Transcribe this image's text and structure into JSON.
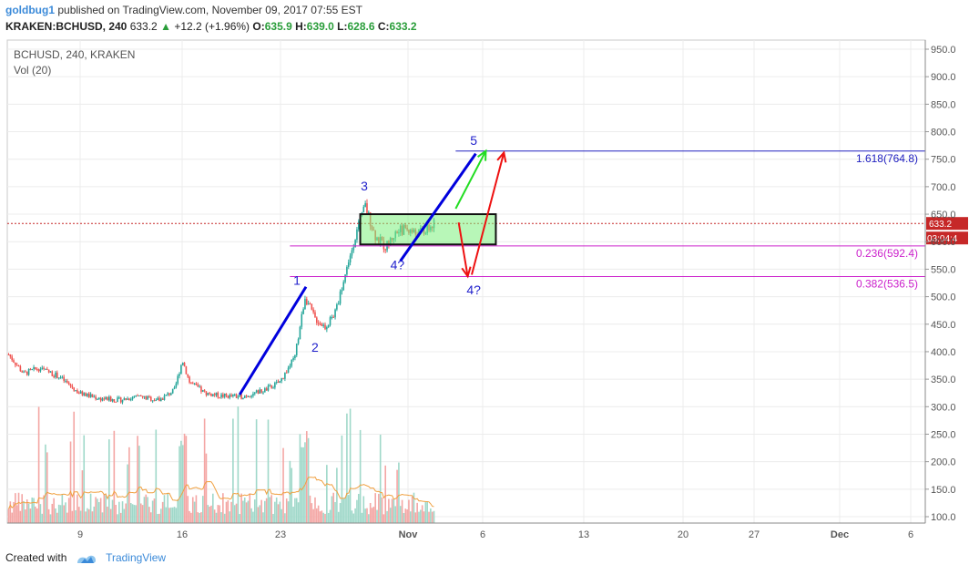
{
  "header": {
    "user": "goldbug1",
    "published": "published on TradingView.com, November 09, 2017 07:55 EST",
    "symbol_line": "KRAKEN:BCHUSD, 240",
    "last": "633.2",
    "change": "+12.2 (+1.96%)",
    "o_label": "O:",
    "o": "635.9",
    "h_label": "H:",
    "h": "639.0",
    "l_label": "L:",
    "l": "628.6",
    "c_label": "C:",
    "c": "633.2"
  },
  "legend": {
    "series": "BCHUSD, 240, KRAKEN",
    "volume": "Vol (20)"
  },
  "footer": {
    "created": "Created with",
    "brand": "TradingView"
  },
  "colors": {
    "up": "#26a69a",
    "down": "#ef5350",
    "accent": "#3b8ad9",
    "wave_line": "#0000dd",
    "fib_top": "#2020c0",
    "fib_magenta": "#cc22cc",
    "box_fill": "#7ef07e",
    "arrow_green": "#22dd22",
    "arrow_red": "#ee1111",
    "ma": "#f0a040",
    "price_marker": "#c62828"
  },
  "chart_data": {
    "type": "candlestick",
    "title": "BCHUSD, 240, KRAKEN",
    "ylim": [
      90,
      970
    ],
    "y_ticks": [
      "100.0",
      "150.0",
      "200.0",
      "250.0",
      "300.0",
      "350.0",
      "400.0",
      "450.0",
      "500.0",
      "550.0",
      "600.0",
      "650.0",
      "700.0",
      "750.0",
      "800.0",
      "850.0",
      "900.0",
      "950.0"
    ],
    "x_ticks": [
      "9",
      "16",
      "23",
      "Nov",
      "6",
      "13",
      "20",
      "27",
      "Dec",
      "6"
    ],
    "current_price": "633.2",
    "countdown": "03:04:4",
    "price_path": [
      {
        "d": 0,
        "p": 395
      },
      {
        "d": 1.5,
        "p": 360
      },
      {
        "d": 3,
        "p": 370
      },
      {
        "d": 5,
        "p": 355
      },
      {
        "d": 7,
        "p": 325
      },
      {
        "d": 9,
        "p": 315
      },
      {
        "d": 11,
        "p": 312
      },
      {
        "d": 13,
        "p": 318
      },
      {
        "d": 15,
        "p": 312
      },
      {
        "d": 16.5,
        "p": 330
      },
      {
        "d": 17.3,
        "p": 385
      },
      {
        "d": 18,
        "p": 345
      },
      {
        "d": 19.5,
        "p": 325
      },
      {
        "d": 21,
        "p": 320
      },
      {
        "d": 23,
        "p": 318
      },
      {
        "d": 24,
        "p": 322
      },
      {
        "d": 25.5,
        "p": 330
      },
      {
        "d": 27,
        "p": 345
      },
      {
        "d": 28.5,
        "p": 390
      },
      {
        "d": 29.5,
        "p": 500
      },
      {
        "d": 30.5,
        "p": 460
      },
      {
        "d": 31.5,
        "p": 445
      },
      {
        "d": 32.5,
        "p": 470
      },
      {
        "d": 33.5,
        "p": 540
      },
      {
        "d": 34.5,
        "p": 610
      },
      {
        "d": 35.5,
        "p": 665
      },
      {
        "d": 36.5,
        "p": 610
      },
      {
        "d": 37.5,
        "p": 590
      },
      {
        "d": 38.5,
        "p": 615
      },
      {
        "d": 39.5,
        "p": 625
      },
      {
        "d": 40.5,
        "p": 615
      },
      {
        "d": 41.5,
        "p": 620
      },
      {
        "d": 42.5,
        "p": 633.2
      }
    ],
    "volume_range": [
      0,
      10000
    ],
    "annotations": {
      "fib_levels": [
        {
          "label": "1.618(764.8)",
          "value": 764.8
        },
        {
          "label": "0.236(592.4)",
          "value": 592.4
        },
        {
          "label": "0.382(536.5)",
          "value": 536.5
        }
      ],
      "wave_labels": [
        {
          "text": "1",
          "d": 28.7,
          "p": 522
        },
        {
          "text": "2",
          "d": 30.5,
          "p": 400
        },
        {
          "text": "3",
          "d": 35.4,
          "p": 693
        },
        {
          "text": "4?",
          "d": 38.7,
          "p": 550
        },
        {
          "text": "4?",
          "d": 46.3,
          "p": 504
        },
        {
          "text": "5",
          "d": 46.3,
          "p": 776
        }
      ],
      "wave_lines": [
        {
          "from": {
            "d": 23,
            "p": 322
          },
          "to": {
            "d": 29.6,
            "p": 518
          }
        },
        {
          "from": {
            "d": 39,
            "p": 565
          },
          "to": {
            "d": 46.5,
            "p": 760
          }
        }
      ],
      "box": {
        "d1": 35,
        "d2": 48.5,
        "p1": 595,
        "p2": 650
      },
      "arrows": [
        {
          "color": "green",
          "from": {
            "d": 44.5,
            "p": 660
          },
          "to": {
            "d": 47.5,
            "p": 765
          }
        },
        {
          "color": "red",
          "from": {
            "d": 44.8,
            "p": 635
          },
          "to": {
            "d": 45.7,
            "p": 537
          }
        },
        {
          "color": "red",
          "from": {
            "d": 46.1,
            "p": 540
          },
          "to": {
            "d": 49.3,
            "p": 762
          }
        }
      ]
    }
  }
}
